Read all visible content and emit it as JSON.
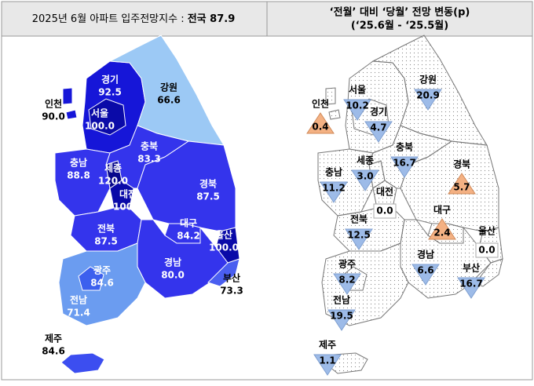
{
  "left": {
    "title": "2025년 6월 아파트 입주전망지수 : ",
    "title_bold": "전국 87.9",
    "regions": [
      {
        "name": "경기",
        "value": "92.5",
        "color": "#1616d8",
        "label_color": "#ffffff"
      },
      {
        "name": "서울",
        "value": "100.0",
        "color": "#0a0aa8",
        "label_color": "#ffffff"
      },
      {
        "name": "인천",
        "value": "90.0",
        "color": "#1616d8",
        "label_color": "#000000"
      },
      {
        "name": "강원",
        "value": "66.6",
        "color": "#9cc9f5",
        "label_color": "#000000"
      },
      {
        "name": "충북",
        "value": "83.3",
        "color": "#3434ec",
        "label_color": "#ffffff"
      },
      {
        "name": "충남",
        "value": "88.8",
        "color": "#3434ec",
        "label_color": "#ffffff"
      },
      {
        "name": "세종",
        "value": "120.0",
        "color": "#08088c",
        "label_color": "#ffffff"
      },
      {
        "name": "대전",
        "value": "100.0",
        "color": "#0a0aa8",
        "label_color": "#ffffff"
      },
      {
        "name": "경북",
        "value": "87.5",
        "color": "#3434ec",
        "label_color": "#ffffff"
      },
      {
        "name": "대구",
        "value": "84.2",
        "color": "#3434ec",
        "label_color": "#ffffff"
      },
      {
        "name": "울산",
        "value": "100.0",
        "color": "#0a0aa8",
        "label_color": "#ffffff"
      },
      {
        "name": "전북",
        "value": "87.5",
        "color": "#3434ec",
        "label_color": "#ffffff"
      },
      {
        "name": "경남",
        "value": "80.0",
        "color": "#3434ec",
        "label_color": "#ffffff"
      },
      {
        "name": "부산",
        "value": "73.3",
        "color": "#4a5ef0",
        "label_color": "#000000"
      },
      {
        "name": "전남",
        "value": "71.4",
        "color": "#6b9cf0",
        "label_color": "#ffffff"
      },
      {
        "name": "광주",
        "value": "84.6",
        "color": "#3c60ee",
        "label_color": "#ffffff"
      },
      {
        "name": "제주",
        "value": "84.6",
        "color": "#3c4ef0",
        "label_color": "#000000"
      }
    ]
  },
  "right": {
    "title_line1": "‘전월’ 대비 ‘당월’ 전망 변동(p)",
    "title_line2": "(‘25.6월 - ‘25.5월)",
    "regions": [
      {
        "name": "경기",
        "value": "4.7",
        "marker": "down",
        "color": "#9dbbe8"
      },
      {
        "name": "서울",
        "value": "10.2",
        "marker": "down",
        "color": "#9dbbe8"
      },
      {
        "name": "인천",
        "value": "0.4",
        "marker": "up",
        "color": "#f4b183"
      },
      {
        "name": "강원",
        "value": "20.9",
        "marker": "down",
        "color": "#9dbbe8"
      },
      {
        "name": "충북",
        "value": "16.7",
        "marker": "down",
        "color": "#9dbbe8"
      },
      {
        "name": "충남",
        "value": "11.2",
        "marker": "down",
        "color": "#9dbbe8"
      },
      {
        "name": "세종",
        "value": "3.0",
        "marker": "down",
        "color": "#9dbbe8"
      },
      {
        "name": "대전",
        "value": "0.0",
        "marker": "flat",
        "color": "#ffffff"
      },
      {
        "name": "경북",
        "value": "5.7",
        "marker": "up",
        "color": "#f4b183"
      },
      {
        "name": "대구",
        "value": "2.4",
        "marker": "up",
        "color": "#f4b183"
      },
      {
        "name": "울산",
        "value": "0.0",
        "marker": "flat",
        "color": "#ffffff"
      },
      {
        "name": "전북",
        "value": "12.5",
        "marker": "down",
        "color": "#9dbbe8"
      },
      {
        "name": "경남",
        "value": "6.6",
        "marker": "down",
        "color": "#9dbbe8"
      },
      {
        "name": "부산",
        "value": "16.7",
        "marker": "down",
        "color": "#9dbbe8"
      },
      {
        "name": "전남",
        "value": "19.5",
        "marker": "down",
        "color": "#9dbbe8"
      },
      {
        "name": "광주",
        "value": "8.2",
        "marker": "down",
        "color": "#9dbbe8"
      },
      {
        "name": "제주",
        "value": "1.1",
        "marker": "down",
        "color": "#9dbbe8"
      }
    ]
  }
}
